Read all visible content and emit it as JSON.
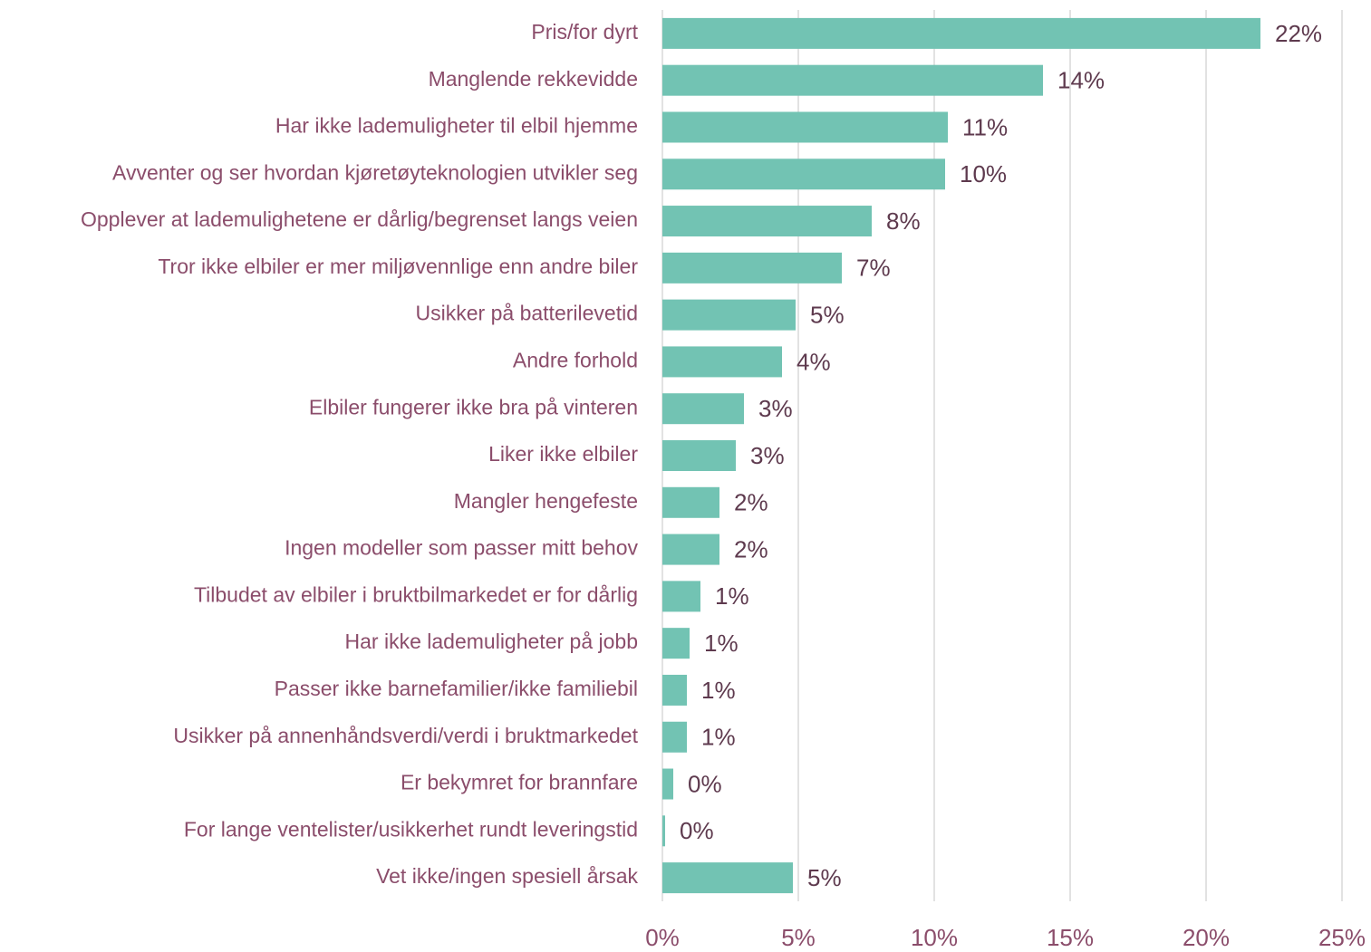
{
  "chart_data": {
    "type": "bar",
    "orientation": "horizontal",
    "categories": [
      "Pris/for dyrt",
      "Manglende rekkevidde",
      "Har ikke lademuligheter til elbil hjemme",
      "Avventer og ser hvordan kjøretøyteknologien utvikler seg",
      "Opplever at lademulighetene er dårlig/begrenset langs veien",
      "Tror ikke elbiler er mer miljøvennlige enn andre biler",
      "Usikker på batterilevetid",
      "Andre forhold",
      "Elbiler fungerer ikke bra på vinteren",
      "Liker ikke elbiler",
      "Mangler hengefeste",
      "Ingen modeller som passer mitt behov",
      "Tilbudet av elbiler i bruktbilmarkedet er for dårlig",
      "Har ikke lademuligheter på jobb",
      "Passer ikke barnefamilier/ikke familiebil",
      "Usikker på annenhåndsverdi/verdi i bruktmarkedet",
      "Er bekymret for brannfare",
      "For lange ventelister/usikkerhet rundt leveringstid",
      "Vet ikke/ingen spesiell årsak"
    ],
    "values": [
      22.0,
      14.0,
      10.5,
      10.4,
      7.7,
      6.6,
      4.9,
      4.4,
      3.0,
      2.7,
      2.1,
      2.1,
      1.4,
      1.0,
      0.9,
      0.9,
      0.4,
      0.1,
      4.8
    ],
    "value_labels": [
      "22%",
      "14%",
      "11%",
      "10%",
      "8%",
      "7%",
      "5%",
      "4%",
      "3%",
      "3%",
      "2%",
      "2%",
      "1%",
      "1%",
      "1%",
      "1%",
      "0%",
      "0%",
      "5%"
    ],
    "color": "#72c3b3",
    "xlim": [
      0,
      25
    ],
    "xticks": [
      {
        "value": 0,
        "label": "0%"
      },
      {
        "value": 5,
        "label": "5%"
      },
      {
        "value": 10,
        "label": "10%"
      },
      {
        "value": 15,
        "label": "15%"
      },
      {
        "value": 20,
        "label": "20%"
      },
      {
        "value": 25,
        "label": "25%"
      }
    ],
    "grid": true
  }
}
